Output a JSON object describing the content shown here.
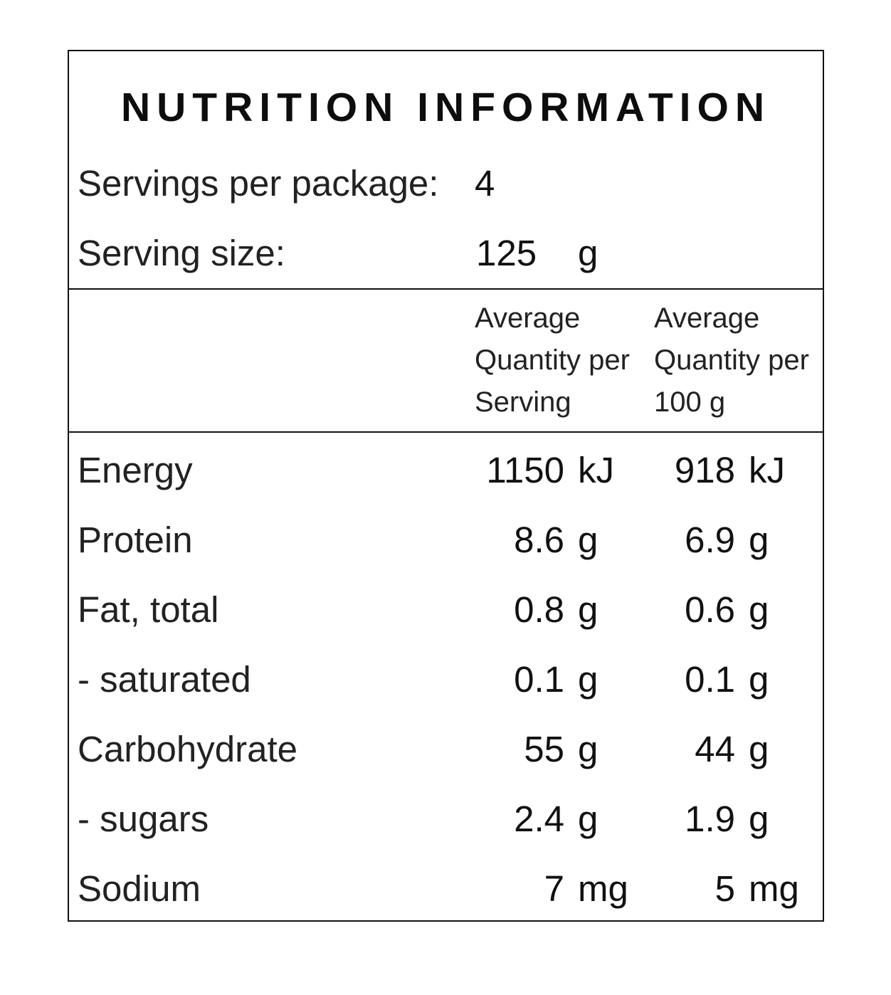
{
  "title": "NUTRITION INFORMATION",
  "servings_per_package": {
    "label": "Servings per package:",
    "value": "4"
  },
  "serving_size": {
    "label": "Serving size:",
    "value": "125",
    "unit": "g"
  },
  "columns": {
    "per_serving": [
      "Average",
      "Quantity per",
      "Serving"
    ],
    "per_100g": [
      "Average",
      "Quantity per",
      "100 g"
    ]
  },
  "nutrients": [
    {
      "name": "Energy",
      "per_serving": "1150",
      "per_serving_unit": "kJ",
      "per_100g": "918",
      "per_100g_unit": "kJ"
    },
    {
      "name": "Protein",
      "per_serving": "8.6",
      "per_serving_unit": "g",
      "per_100g": "6.9",
      "per_100g_unit": "g"
    },
    {
      "name": "Fat, total",
      "per_serving": "0.8",
      "per_serving_unit": "g",
      "per_100g": "0.6",
      "per_100g_unit": "g"
    },
    {
      "name": "- saturated",
      "per_serving": "0.1",
      "per_serving_unit": "g",
      "per_100g": "0.1",
      "per_100g_unit": "g"
    },
    {
      "name": "Carbohydrate",
      "per_serving": "55",
      "per_serving_unit": "g",
      "per_100g": "44",
      "per_100g_unit": "g"
    },
    {
      "name": "- sugars",
      "per_serving": "2.4",
      "per_serving_unit": "g",
      "per_100g": "1.9",
      "per_100g_unit": "g"
    },
    {
      "name": "Sodium",
      "per_serving": "7",
      "per_serving_unit": "mg",
      "per_100g": "5",
      "per_100g_unit": "mg"
    }
  ]
}
